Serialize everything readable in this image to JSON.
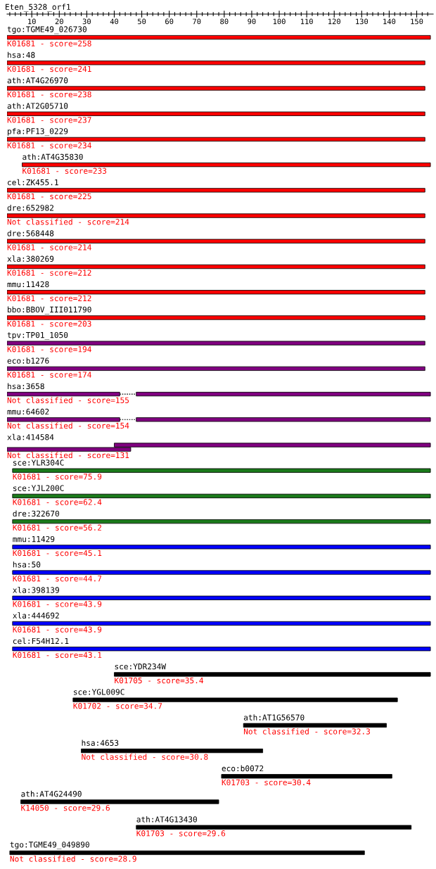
{
  "chart_data": {
    "type": "bar",
    "orientation": "horizontal",
    "title": "Eten_5328_orf1",
    "categories": [
      "tgo:TGME49_026730",
      "hsa:48",
      "ath:AT4G26970",
      "ath:AT2G05710",
      "pfa:PF13_0229",
      "ath:AT4G35830",
      "cel:ZK455.1",
      "dre:652982",
      "dre:568448",
      "xla:380269",
      "mmu:11428",
      "bbo:BBOV_III011790",
      "tpv:TP01_1050",
      "eco:b1276",
      "hsa:3658",
      "mmu:64602",
      "xla:414584",
      "sce:YLR304C",
      "sce:YJL200C",
      "dre:322670",
      "mmu:11429",
      "hsa:50",
      "xla:398139",
      "xla:444692",
      "cel:F54H12.1",
      "sce:YDR234W",
      "sce:YGL009C",
      "ath:AT1G56570",
      "hsa:4653",
      "eco:b0072",
      "ath:AT4G24490",
      "ath:AT4G13430",
      "tgo:TGME49_049890"
    ],
    "series": [
      {
        "base": [
          1,
          1,
          1,
          1,
          1,
          6.5,
          1,
          1,
          1,
          1,
          1,
          1,
          1,
          1,
          1,
          1,
          40,
          3,
          3,
          3,
          3,
          3,
          3,
          3,
          3,
          40,
          25,
          87,
          28,
          79,
          6,
          48,
          2
        ],
        "values": [
          154,
          152,
          152,
          152,
          152,
          148.5,
          152,
          152,
          152,
          152,
          152,
          152,
          152,
          152,
          41,
          41,
          115,
          152,
          152,
          152,
          152,
          152,
          152,
          152,
          152,
          115,
          118,
          52,
          66,
          62,
          72,
          100,
          129
        ],
        "colors": [
          "#ff0000",
          "#ff0000",
          "#ff0000",
          "#ff0000",
          "#ff0000",
          "#ff0000",
          "#ff0000",
          "#ff0000",
          "#ff0000",
          "#ff0000",
          "#ff0000",
          "#ff0000",
          "#800080",
          "#800080",
          "#800080",
          "#800080",
          "#800080",
          "#1a7a1a",
          "#1a7a1a",
          "#1a7a1a",
          "#0000ff",
          "#0000ff",
          "#0000ff",
          "#0000ff",
          "#0000ff",
          "#000000",
          "#000000",
          "#000000",
          "#000000",
          "#000000",
          "#000000",
          "#000000",
          "#000000"
        ]
      },
      {
        "base": [
          null,
          null,
          null,
          null,
          null,
          null,
          null,
          null,
          null,
          null,
          null,
          null,
          null,
          null,
          48,
          48,
          1,
          null,
          null,
          null,
          null,
          null,
          null,
          null,
          null,
          null,
          null,
          null,
          null,
          null,
          null,
          null,
          null
        ],
        "values": [
          null,
          null,
          null,
          null,
          null,
          null,
          null,
          null,
          null,
          null,
          null,
          null,
          null,
          null,
          107,
          107,
          45,
          null,
          null,
          null,
          null,
          null,
          null,
          null,
          null,
          null,
          null,
          null,
          null,
          null,
          null,
          null,
          null
        ],
        "colors": [
          null,
          null,
          null,
          null,
          null,
          null,
          null,
          null,
          null,
          null,
          null,
          null,
          null,
          null,
          "#800080",
          "#800080",
          "#800080",
          null,
          null,
          null,
          null,
          null,
          null,
          null,
          null,
          null,
          null,
          null,
          null,
          null,
          null,
          null,
          null
        ]
      }
    ],
    "xlim": [
      1,
      156
    ],
    "xticks": [
      {
        "value": 2,
        "label": null
      },
      {
        "value": 4,
        "label": null
      },
      {
        "value": 6,
        "label": null
      },
      {
        "value": 8,
        "label": null
      },
      10,
      {
        "value": 12,
        "label": null
      },
      {
        "value": 14,
        "label": null
      },
      {
        "value": 16,
        "label": null
      },
      {
        "value": 18,
        "label": null
      },
      20,
      {
        "value": 22,
        "label": null
      },
      {
        "value": 24,
        "label": null
      },
      {
        "value": 26,
        "label": null
      },
      {
        "value": 28,
        "label": null
      },
      30,
      {
        "value": 32,
        "label": null
      },
      {
        "value": 34,
        "label": null
      },
      {
        "value": 36,
        "label": null
      },
      {
        "value": 38,
        "label": null
      },
      40,
      {
        "value": 42,
        "label": null
      },
      {
        "value": 44,
        "label": null
      },
      {
        "value": 46,
        "label": null
      },
      {
        "value": 48,
        "label": null
      },
      50,
      {
        "value": 52,
        "label": null
      },
      {
        "value": 54,
        "label": null
      },
      {
        "value": 56,
        "label": null
      },
      {
        "value": 58,
        "label": null
      },
      60,
      {
        "value": 62,
        "label": null
      },
      {
        "value": 64,
        "label": null
      },
      {
        "value": 66,
        "label": null
      },
      {
        "value": 68,
        "label": null
      },
      70,
      {
        "value": 72,
        "label": null
      },
      {
        "value": 74,
        "label": null
      },
      {
        "value": 76,
        "label": null
      },
      {
        "value": 78,
        "label": null
      },
      80,
      {
        "value": 82,
        "label": null
      },
      {
        "value": 84,
        "label": null
      },
      {
        "value": 86,
        "label": null
      },
      {
        "value": 88,
        "label": null
      },
      90,
      {
        "value": 92,
        "label": null
      },
      {
        "value": 94,
        "label": null
      },
      {
        "value": 96,
        "label": null
      },
      {
        "value": 98,
        "label": null
      },
      100,
      {
        "value": 102,
        "label": null
      },
      {
        "value": 104,
        "label": null
      },
      {
        "value": 106,
        "label": null
      },
      {
        "value": 108,
        "label": null
      },
      110,
      {
        "value": 112,
        "label": null
      },
      {
        "value": 114,
        "label": null
      },
      {
        "value": 116,
        "label": null
      },
      {
        "value": 118,
        "label": null
      },
      120,
      {
        "value": 122,
        "label": null
      },
      {
        "value": 124,
        "label": null
      },
      {
        "value": 126,
        "label": null
      },
      {
        "value": 128,
        "label": null
      },
      130,
      {
        "value": 132,
        "label": null
      },
      {
        "value": 134,
        "label": null
      },
      {
        "value": 136,
        "label": null
      },
      {
        "value": 138,
        "label": null
      },
      140,
      {
        "value": 142,
        "label": null
      },
      {
        "value": 144,
        "label": null
      },
      {
        "value": 146,
        "label": null
      },
      {
        "value": 148,
        "label": null
      },
      150,
      {
        "value": 152,
        "label": null
      },
      {
        "value": 154,
        "label": null
      }
    ],
    "tick_labels": "x",
    "annotations": [
      "K01681 - score=258",
      "K01681 - score=241",
      "K01681 - score=238",
      "K01681 - score=237",
      "K01681 - score=234",
      "K01681 - score=233",
      "K01681 - score=225",
      "Not classified - score=214",
      "K01681 - score=214",
      "K01681 - score=212",
      "K01681 - score=212",
      "K01681 - score=203",
      "K01681 - score=194",
      "K01681 - score=174",
      "Not classified - score=155",
      "Not classified - score=154",
      "Not classified - score=131",
      "K01681 - score=75.9",
      "K01681 - score=62.4",
      "K01681 - score=56.2",
      "K01681 - score=45.1",
      "K01681 - score=44.7",
      "K01681 - score=43.9",
      "K01681 - score=43.9",
      "K01681 - score=43.1",
      "K01705 - score=35.4",
      "K01702 - score=34.7",
      "Not classified - score=32.3",
      "Not classified - score=30.8",
      "K01703 - score=30.4",
      "K14050 - score=29.6",
      "K01703 - score=29.6",
      "Not classified - score=28.9"
    ]
  }
}
